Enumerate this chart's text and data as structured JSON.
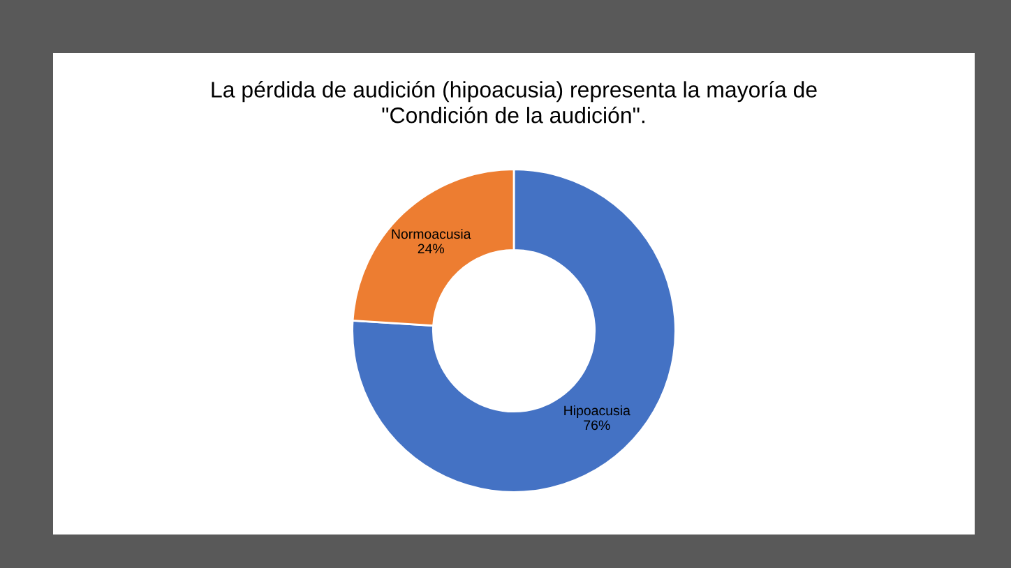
{
  "chart_data": {
    "type": "donut",
    "title": "La pérdida de audición (hipoacusia) representa la mayoría de\n\"Condición de la audición\".",
    "categories": [
      "Hipoacusia",
      "Normoacusia"
    ],
    "values": [
      76,
      24
    ],
    "colors": [
      "#4472c4",
      "#ed7d31"
    ],
    "value_labels": [
      "76%",
      "24%"
    ],
    "legend": false
  }
}
